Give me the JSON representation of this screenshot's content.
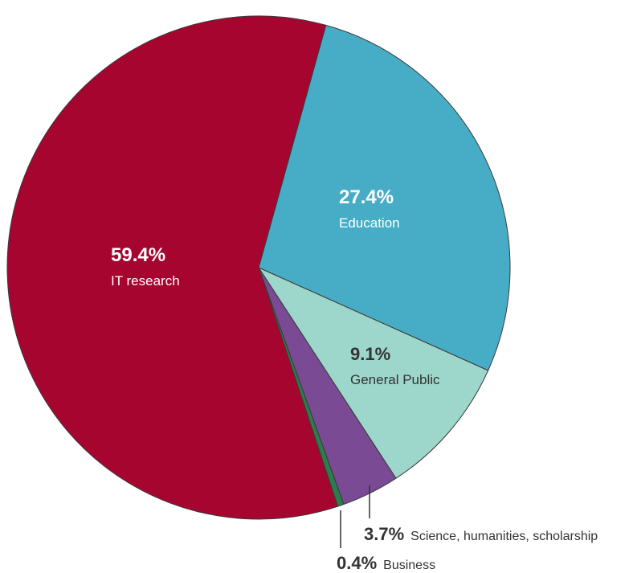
{
  "chart_data": {
    "type": "pie",
    "slices": [
      {
        "value": 27.4,
        "value_label": "27.4%",
        "label": "Education",
        "color": "#47adc6",
        "text_color": "#ffffff"
      },
      {
        "value": 9.1,
        "value_label": "9.1%",
        "label": "General Public",
        "color": "#9dd6ca",
        "text_color": "#333333"
      },
      {
        "value": 3.7,
        "value_label": "3.7%",
        "label": "Science, humanities, scholarship",
        "color": "#7a4a95",
        "text_color": "#333333"
      },
      {
        "value": 0.4,
        "value_label": "0.4%",
        "label": "Business",
        "color": "#2b7d4c",
        "text_color": "#333333"
      },
      {
        "value": 59.4,
        "value_label": "59.4%",
        "label": "IT research",
        "color": "#a6052f",
        "text_color": "#ffffff"
      }
    ]
  }
}
